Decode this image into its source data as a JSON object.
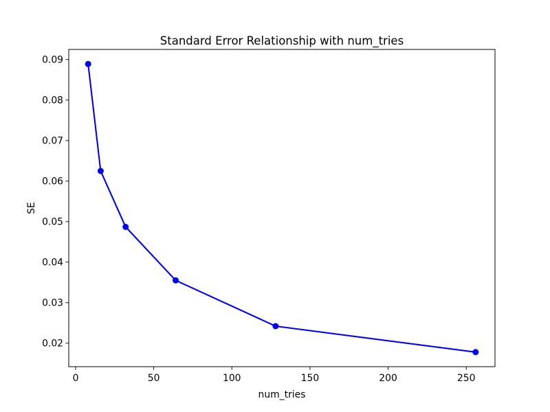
{
  "figure": {
    "background": "#ffffff",
    "text_color": "#000000"
  },
  "chart_data": {
    "type": "line",
    "title": "Standard Error Relationship with num_tries",
    "xlabel": "num_tries",
    "ylabel": "SE",
    "x": [
      8,
      16,
      32,
      64,
      128,
      256
    ],
    "y": [
      0.0889,
      0.0625,
      0.0487,
      0.0355,
      0.0242,
      0.0178
    ],
    "line_color": "#0000ff",
    "marker": "circle",
    "x_ticks": [
      0,
      50,
      100,
      150,
      200,
      250
    ],
    "x_tick_labels": [
      "0",
      "50",
      "100",
      "150",
      "200",
      "250"
    ],
    "y_ticks": [
      0.02,
      0.03,
      0.04,
      0.05,
      0.06,
      0.07,
      0.08,
      0.09
    ],
    "y_tick_labels": [
      "0.02",
      "0.03",
      "0.04",
      "0.05",
      "0.06",
      "0.07",
      "0.08",
      "0.09"
    ],
    "xlim": [
      -4.4,
      268.4
    ],
    "ylim": [
      0.0142,
      0.0925
    ],
    "grid": false,
    "legend": false
  }
}
